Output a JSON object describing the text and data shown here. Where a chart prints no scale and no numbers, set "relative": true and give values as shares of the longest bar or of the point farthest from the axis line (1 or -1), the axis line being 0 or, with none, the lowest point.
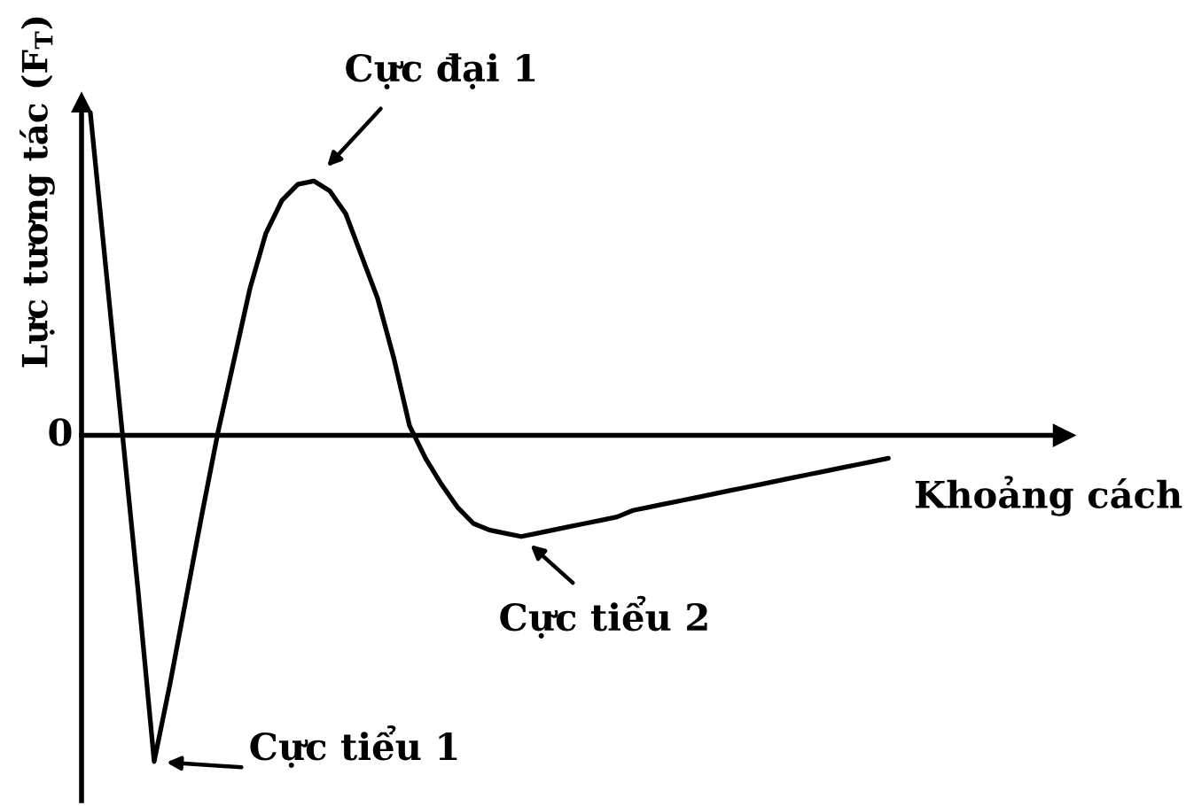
{
  "chart_data": {
    "type": "line",
    "relative": true,
    "color": "#000000",
    "xlabel": "Khoảng cách",
    "ylabel": "Lực tương tác (F$_{T}$)",
    "categories": [
      null,
      null,
      null,
      null,
      null,
      null,
      null,
      null,
      null,
      null,
      null,
      null,
      null,
      null,
      null,
      null,
      null,
      null,
      null,
      null,
      null,
      null,
      null,
      null,
      null,
      null,
      null,
      null,
      null,
      null,
      null,
      null,
      null,
      null,
      null,
      null,
      null,
      null,
      null,
      null,
      null,
      null,
      null,
      null,
      null,
      null,
      null,
      null,
      null,
      null,
      null
    ],
    "values": [
      0.99,
      0.5,
      0.01,
      -0.48,
      -1,
      -0.76,
      -0.5,
      -0.24,
      0.01,
      0.23,
      0.45,
      0.62,
      0.72,
      0.77,
      0.78,
      0.75,
      0.68,
      0.55,
      0.42,
      0.24,
      0.03,
      -0.07,
      -0.15,
      -0.22,
      -0.27,
      -0.29,
      -0.3,
      -0.31,
      -0.3,
      -0.29,
      -0.28,
      -0.27,
      -0.26,
      -0.25,
      -0.23,
      -0.22,
      -0.21,
      -0.2,
      -0.19,
      -0.18,
      -0.17,
      -0.16,
      -0.15,
      -0.14,
      -0.13,
      -0.12,
      -0.11,
      -0.1,
      -0.09,
      -0.08,
      -0.07
    ],
    "annotations": [
      "0",
      "Cực tiểu 1",
      "Cực đại 1",
      "Cực tiểu 2"
    ]
  }
}
